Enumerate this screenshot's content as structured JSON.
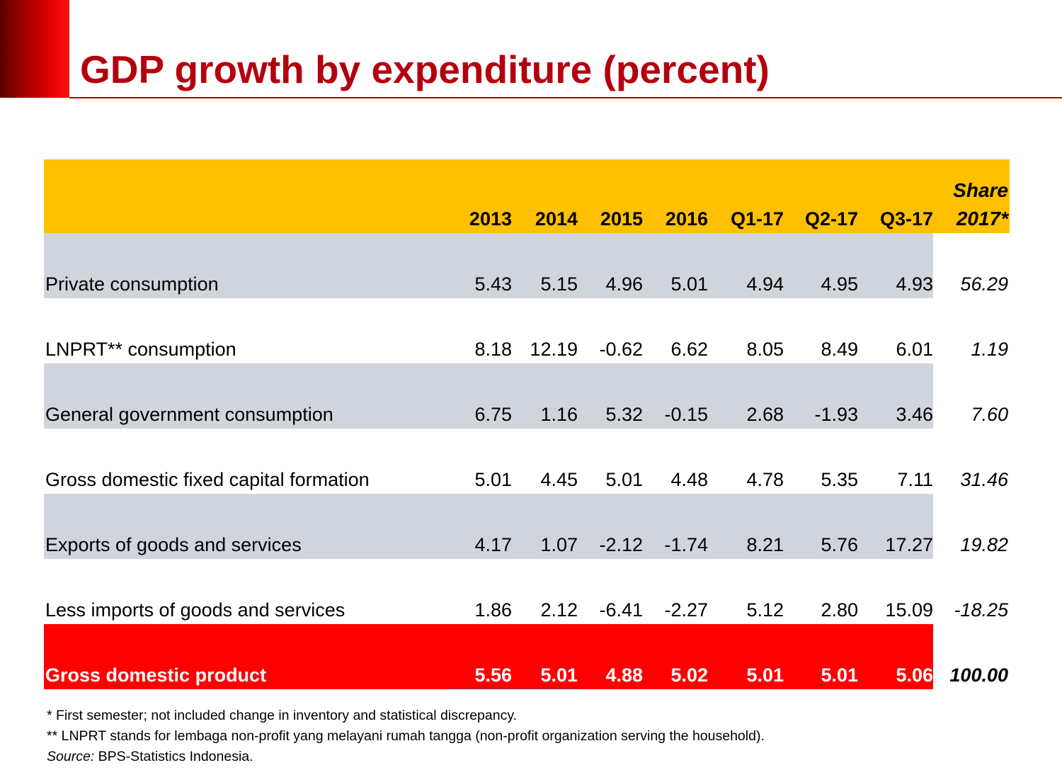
{
  "title": "GDP growth by expenditure (percent)",
  "table": {
    "headers": [
      "2013",
      "2014",
      "2015",
      "2016",
      "Q1-17",
      "Q2-17",
      "Q3-17"
    ],
    "share_header": [
      "Share",
      "2017*"
    ],
    "rows": [
      {
        "label": "Private consumption",
        "values": [
          "5.43",
          "5.15",
          "4.96",
          "5.01",
          "4.94",
          "4.95",
          "4.93"
        ],
        "share": "56.29"
      },
      {
        "label": "LNPRT** consumption",
        "values": [
          "8.18",
          "12.19",
          "-0.62",
          "6.62",
          "8.05",
          "8.49",
          "6.01"
        ],
        "share": "1.19"
      },
      {
        "label": "General government consumption",
        "values": [
          "6.75",
          "1.16",
          "5.32",
          "-0.15",
          "2.68",
          "-1.93",
          "3.46"
        ],
        "share": "7.60"
      },
      {
        "label": "Gross domestic fixed capital formation",
        "values": [
          "5.01",
          "4.45",
          "5.01",
          "4.48",
          "4.78",
          "5.35",
          "7.11"
        ],
        "share": "31.46"
      },
      {
        "label": "Exports of goods and services",
        "values": [
          "4.17",
          "1.07",
          "-2.12",
          "-1.74",
          "8.21",
          "5.76",
          "17.27"
        ],
        "share": "19.82"
      },
      {
        "label": "Less imports of goods and services",
        "values": [
          "1.86",
          "2.12",
          "-6.41",
          "-2.27",
          "5.12",
          "2.80",
          "15.09"
        ],
        "share": "-18.25"
      },
      {
        "label": "Gross domestic product",
        "values": [
          "5.56",
          "5.01",
          "4.88",
          "5.02",
          "5.01",
          "5.01",
          "5.06"
        ],
        "share": "100.00"
      }
    ]
  },
  "notes": {
    "note1": "* First semester; not included change in inventory and statistical discrepancy.",
    "note2": "** LNPRT stands for lembaga non-profit yang melayani rumah tangga (non-profit organization serving the household).",
    "source_label": "Source:",
    "source_text": " BPS-Statistics Indonesia."
  },
  "colors": {
    "title": "#b3000e",
    "header_bg": "#ffc000",
    "shaded_row_bg": "#d0d5dd",
    "gdp_row_bg": "#ff0000"
  }
}
